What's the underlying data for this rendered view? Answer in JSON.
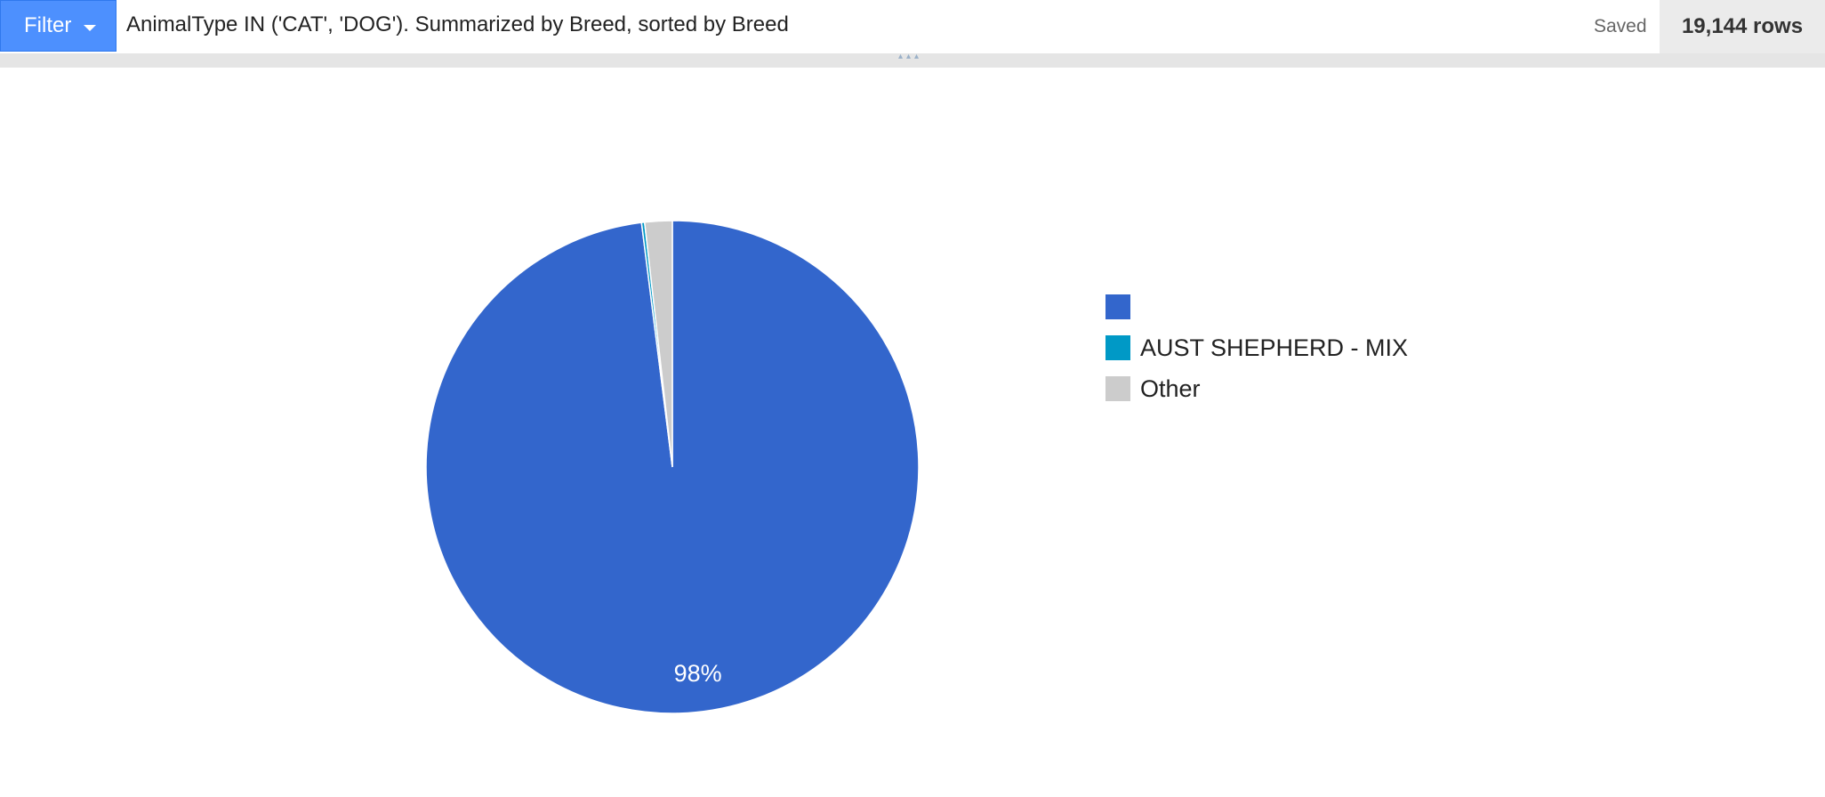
{
  "toolbar": {
    "filter_label": "Filter",
    "filter_description": "AnimalType IN ('CAT', 'DOG'). Summarized by Breed, sorted by Breed",
    "saved_status": "Saved",
    "row_count": "19,144 rows"
  },
  "colors": {
    "filter_button": "#4d90fe",
    "slice_primary": "#3366cc",
    "slice_aust_shepherd": "#0099c6",
    "slice_other": "#cccccc"
  },
  "chart_data": {
    "type": "pie",
    "slices": [
      {
        "label": "",
        "value": 98.0,
        "color": "#3366cc",
        "data_label": "98%"
      },
      {
        "label": "AUST SHEPHERD - MIX",
        "value": 0.2,
        "color": "#0099c6",
        "data_label": ""
      },
      {
        "label": "Other",
        "value": 1.8,
        "color": "#cccccc",
        "data_label": ""
      }
    ],
    "legend_position": "right"
  }
}
